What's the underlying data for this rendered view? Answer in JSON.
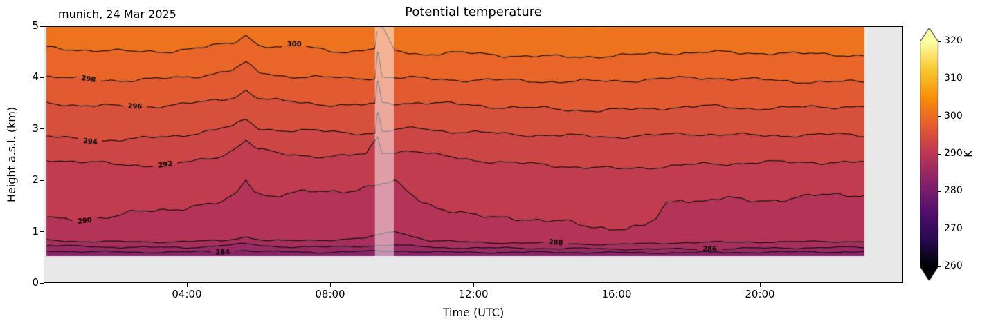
{
  "title": "Potential temperature",
  "annotation": "munich, 24 Mar 2025",
  "axes": {
    "xlabel": "Time (UTC)",
    "ylabel": "Height a.s.l. (km)",
    "x_ticks": [
      {
        "hour": 4,
        "label": "04:00"
      },
      {
        "hour": 8,
        "label": "08:00"
      },
      {
        "hour": 12,
        "label": "12:00"
      },
      {
        "hour": 16,
        "label": "16:00"
      },
      {
        "hour": 20,
        "label": "20:00"
      }
    ],
    "y_ticks": [
      {
        "km": 0,
        "label": "0"
      },
      {
        "km": 1,
        "label": "1"
      },
      {
        "km": 2,
        "label": "2"
      },
      {
        "km": 3,
        "label": "3"
      },
      {
        "km": 4,
        "label": "4"
      },
      {
        "km": 5,
        "label": "5"
      }
    ]
  },
  "colorbar": {
    "label": "K",
    "min": 260,
    "max": 320,
    "extend": "both",
    "ticks": [
      {
        "value": 260,
        "label": "260"
      },
      {
        "value": 270,
        "label": "270"
      },
      {
        "value": 280,
        "label": "280"
      },
      {
        "value": 290,
        "label": "290"
      },
      {
        "value": 300,
        "label": "300"
      },
      {
        "value": 310,
        "label": "310"
      },
      {
        "value": 320,
        "label": "320"
      }
    ],
    "stops": [
      [
        0.0,
        "#000004"
      ],
      [
        0.125,
        "#280b53"
      ],
      [
        0.25,
        "#56106e"
      ],
      [
        0.375,
        "#88226a"
      ],
      [
        0.5,
        "#bb3754"
      ],
      [
        0.625,
        "#e55c30"
      ],
      [
        0.75,
        "#f98e09"
      ],
      [
        0.875,
        "#f8c932"
      ],
      [
        1.0,
        "#fcffa4"
      ]
    ]
  },
  "colors": {
    "figure_bg": "#ffffff",
    "plot_bg": "#e8e8e8",
    "contour_line": "#141414",
    "contour_label": "#000000",
    "gap_overlay": "rgba(255,255,255,0.5)"
  },
  "chart_data": {
    "type": "filled-contour",
    "value_unit": "K",
    "x_range_hours": [
      0,
      24
    ],
    "ylim_km": [
      0,
      5
    ],
    "data_start_hour": 0.08,
    "data_end_hour": 22.92,
    "data_bottom_km": 0.52,
    "band_step": 2,
    "lapse_below": 15,
    "lapse_above": 3.6,
    "gap_hours": [
      9.25,
      9.78
    ],
    "contour_levels_K": [
      284,
      286,
      288,
      290,
      292,
      294,
      296,
      298,
      300
    ],
    "contours": [
      {
        "level": 284,
        "label": "284",
        "label_hour": 5.0,
        "points": [
          [
            0.08,
            0.63
          ],
          [
            1,
            0.61
          ],
          [
            3,
            0.6
          ],
          [
            5,
            0.61
          ],
          [
            5.6,
            0.64
          ],
          [
            6,
            0.61
          ],
          [
            8,
            0.6
          ],
          [
            9.3,
            0.62
          ],
          [
            9.8,
            0.63
          ],
          [
            11,
            0.6
          ],
          [
            14,
            0.6
          ],
          [
            17,
            0.59
          ],
          [
            20,
            0.6
          ],
          [
            22.92,
            0.61
          ]
        ]
      },
      {
        "level": 286,
        "label": "286",
        "label_hour": 18.6,
        "points": [
          [
            0.08,
            0.73
          ],
          [
            2,
            0.7
          ],
          [
            4,
            0.69
          ],
          [
            5.6,
            0.76
          ],
          [
            6.5,
            0.71
          ],
          [
            8,
            0.7
          ],
          [
            9.3,
            0.73
          ],
          [
            9.8,
            0.74
          ],
          [
            11,
            0.69
          ],
          [
            13,
            0.68
          ],
          [
            15,
            0.67
          ],
          [
            16.5,
            0.66
          ],
          [
            18.6,
            0.66
          ],
          [
            20,
            0.68
          ],
          [
            22,
            0.69
          ],
          [
            22.92,
            0.7
          ]
        ]
      },
      {
        "level": 288,
        "label": "288",
        "label_hour": 14.3,
        "points": [
          [
            0.08,
            0.84
          ],
          [
            1,
            0.81
          ],
          [
            3,
            0.8
          ],
          [
            5,
            0.82
          ],
          [
            5.65,
            0.9
          ],
          [
            6.2,
            0.83
          ],
          [
            7,
            0.82
          ],
          [
            8,
            0.84
          ],
          [
            9,
            0.88
          ],
          [
            9.35,
            0.93
          ],
          [
            9.8,
            1.01
          ],
          [
            10.3,
            0.91
          ],
          [
            10.8,
            0.83
          ],
          [
            12,
            0.79
          ],
          [
            14,
            0.78
          ],
          [
            15,
            0.76
          ],
          [
            16,
            0.75
          ],
          [
            17,
            0.77
          ],
          [
            18,
            0.79
          ],
          [
            20,
            0.8
          ],
          [
            22.92,
            0.81
          ]
        ]
      },
      {
        "level": 290,
        "label": "290",
        "label_hour": 1.15,
        "points": [
          [
            0.08,
            1.27
          ],
          [
            0.7,
            1.22
          ],
          [
            1.2,
            1.25
          ],
          [
            2,
            1.3
          ],
          [
            2.7,
            1.38
          ],
          [
            3.5,
            1.45
          ],
          [
            4.3,
            1.5
          ],
          [
            5.0,
            1.55
          ],
          [
            5.4,
            1.75
          ],
          [
            5.65,
            2.05
          ],
          [
            5.9,
            1.8
          ],
          [
            6.3,
            1.7
          ],
          [
            7,
            1.74
          ],
          [
            7.7,
            1.78
          ],
          [
            8.3,
            1.8
          ],
          [
            9,
            1.86
          ],
          [
            9.35,
            1.9
          ],
          [
            9.8,
            1.96
          ],
          [
            10.2,
            1.76
          ],
          [
            10.6,
            1.6
          ],
          [
            11,
            1.48
          ],
          [
            11.5,
            1.38
          ],
          [
            12,
            1.3
          ],
          [
            12.5,
            1.27
          ],
          [
            13,
            1.3
          ],
          [
            13.5,
            1.25
          ],
          [
            14,
            1.2
          ],
          [
            14.6,
            1.18
          ],
          [
            15.2,
            1.12
          ],
          [
            15.8,
            1.08
          ],
          [
            16.3,
            1.05
          ],
          [
            16.8,
            1.1
          ],
          [
            17.1,
            1.25
          ],
          [
            17.4,
            1.55
          ],
          [
            17.8,
            1.65
          ],
          [
            18.3,
            1.6
          ],
          [
            19,
            1.64
          ],
          [
            19.6,
            1.6
          ],
          [
            20.2,
            1.62
          ],
          [
            21,
            1.66
          ],
          [
            21.7,
            1.7
          ],
          [
            22.3,
            1.72
          ],
          [
            22.92,
            1.74
          ]
        ]
      },
      {
        "level": 292,
        "label": "292",
        "label_hour": 3.4,
        "points": [
          [
            0.08,
            2.42
          ],
          [
            1,
            2.35
          ],
          [
            2,
            2.32
          ],
          [
            3.4,
            2.28
          ],
          [
            4,
            2.35
          ],
          [
            4.8,
            2.45
          ],
          [
            5.3,
            2.6
          ],
          [
            5.65,
            2.78
          ],
          [
            6,
            2.6
          ],
          [
            6.5,
            2.52
          ],
          [
            7,
            2.5
          ],
          [
            8,
            2.46
          ],
          [
            9,
            2.5
          ],
          [
            9.33,
            2.85
          ],
          [
            9.45,
            2.55
          ],
          [
            9.8,
            2.56
          ],
          [
            10.3,
            2.58
          ],
          [
            11,
            2.48
          ],
          [
            12,
            2.4
          ],
          [
            13,
            2.34
          ],
          [
            14,
            2.3
          ],
          [
            15,
            2.26
          ],
          [
            16,
            2.22
          ],
          [
            17,
            2.26
          ],
          [
            18,
            2.3
          ],
          [
            19,
            2.32
          ],
          [
            20,
            2.36
          ],
          [
            21,
            2.34
          ],
          [
            22,
            2.36
          ],
          [
            22.92,
            2.35
          ]
        ]
      },
      {
        "level": 294,
        "label": "294",
        "label_hour": 1.3,
        "points": [
          [
            0.08,
            2.85
          ],
          [
            1.3,
            2.78
          ],
          [
            2.5,
            2.8
          ],
          [
            3.5,
            2.85
          ],
          [
            4.5,
            2.95
          ],
          [
            5.3,
            3.05
          ],
          [
            5.65,
            3.18
          ],
          [
            6,
            3.02
          ],
          [
            6.6,
            2.98
          ],
          [
            7.5,
            2.96
          ],
          [
            8.5,
            2.93
          ],
          [
            9.25,
            2.92
          ],
          [
            9.33,
            3.35
          ],
          [
            9.45,
            2.95
          ],
          [
            9.8,
            2.97
          ],
          [
            10.5,
            3.02
          ],
          [
            11.2,
            2.96
          ],
          [
            12,
            2.93
          ],
          [
            13,
            2.9
          ],
          [
            14,
            2.88
          ],
          [
            15,
            2.86
          ],
          [
            16,
            2.85
          ],
          [
            17,
            2.87
          ],
          [
            18,
            2.91
          ],
          [
            19,
            2.89
          ],
          [
            20,
            2.87
          ],
          [
            21,
            2.88
          ],
          [
            22,
            2.89
          ],
          [
            22.92,
            2.88
          ]
        ]
      },
      {
        "level": 296,
        "label": "296",
        "label_hour": 2.55,
        "points": [
          [
            0.08,
            3.52
          ],
          [
            1,
            3.46
          ],
          [
            2.5,
            3.43
          ],
          [
            3.5,
            3.46
          ],
          [
            4.5,
            3.52
          ],
          [
            5.3,
            3.62
          ],
          [
            5.65,
            3.76
          ],
          [
            6,
            3.6
          ],
          [
            6.6,
            3.54
          ],
          [
            7.5,
            3.5
          ],
          [
            8.5,
            3.46
          ],
          [
            9.25,
            3.47
          ],
          [
            9.33,
            3.95
          ],
          [
            9.45,
            3.5
          ],
          [
            9.8,
            3.5
          ],
          [
            10.5,
            3.52
          ],
          [
            11.5,
            3.48
          ],
          [
            12.5,
            3.44
          ],
          [
            13.5,
            3.41
          ],
          [
            14.5,
            3.38
          ],
          [
            15.5,
            3.36
          ],
          [
            16.5,
            3.38
          ],
          [
            17.5,
            3.42
          ],
          [
            18.5,
            3.44
          ],
          [
            19.5,
            3.41
          ],
          [
            20.5,
            3.4
          ],
          [
            21.5,
            3.43
          ],
          [
            22.92,
            3.44
          ]
        ]
      },
      {
        "level": 298,
        "label": "298",
        "label_hour": 1.25,
        "points": [
          [
            0.08,
            4.02
          ],
          [
            1.2,
            3.96
          ],
          [
            2.5,
            3.95
          ],
          [
            3.5,
            3.98
          ],
          [
            4.5,
            4.05
          ],
          [
            5.3,
            4.15
          ],
          [
            5.65,
            4.28
          ],
          [
            6,
            4.1
          ],
          [
            6.6,
            4.04
          ],
          [
            7.5,
            4.01
          ],
          [
            8.5,
            3.98
          ],
          [
            9.25,
            4.0
          ],
          [
            9.33,
            4.55
          ],
          [
            9.45,
            4.02
          ],
          [
            9.8,
            4.0
          ],
          [
            10.5,
            3.98
          ],
          [
            11.5,
            3.96
          ],
          [
            12.5,
            3.95
          ],
          [
            13.5,
            3.94
          ],
          [
            14.5,
            3.92
          ],
          [
            15.5,
            3.93
          ],
          [
            16.5,
            3.95
          ],
          [
            17.5,
            3.98
          ],
          [
            18.5,
            4.0
          ],
          [
            19.5,
            3.97
          ],
          [
            20.5,
            3.94
          ],
          [
            21.5,
            3.92
          ],
          [
            22.92,
            3.91
          ]
        ]
      },
      {
        "level": 300,
        "label": "300",
        "label_hour": 7.0,
        "points": [
          [
            0.08,
            4.58
          ],
          [
            1.2,
            4.54
          ],
          [
            2.5,
            4.5
          ],
          [
            3.5,
            4.52
          ],
          [
            4.5,
            4.58
          ],
          [
            5.3,
            4.68
          ],
          [
            5.65,
            4.84
          ],
          [
            6,
            4.64
          ],
          [
            6.6,
            4.58
          ],
          [
            7.0,
            4.62
          ],
          [
            7.5,
            4.58
          ],
          [
            8.5,
            4.5
          ],
          [
            9.25,
            4.55
          ],
          [
            9.33,
            5.05
          ],
          [
            9.5,
            4.9
          ],
          [
            9.8,
            4.53
          ],
          [
            10.5,
            4.46
          ],
          [
            11.5,
            4.48
          ],
          [
            12.5,
            4.45
          ],
          [
            13.5,
            4.42
          ],
          [
            14.5,
            4.4
          ],
          [
            15.5,
            4.42
          ],
          [
            16.5,
            4.44
          ],
          [
            17.5,
            4.48
          ],
          [
            18.5,
            4.5
          ],
          [
            19.5,
            4.47
          ],
          [
            20.5,
            4.49
          ],
          [
            21.5,
            4.45
          ],
          [
            22.92,
            4.44
          ]
        ]
      }
    ]
  }
}
